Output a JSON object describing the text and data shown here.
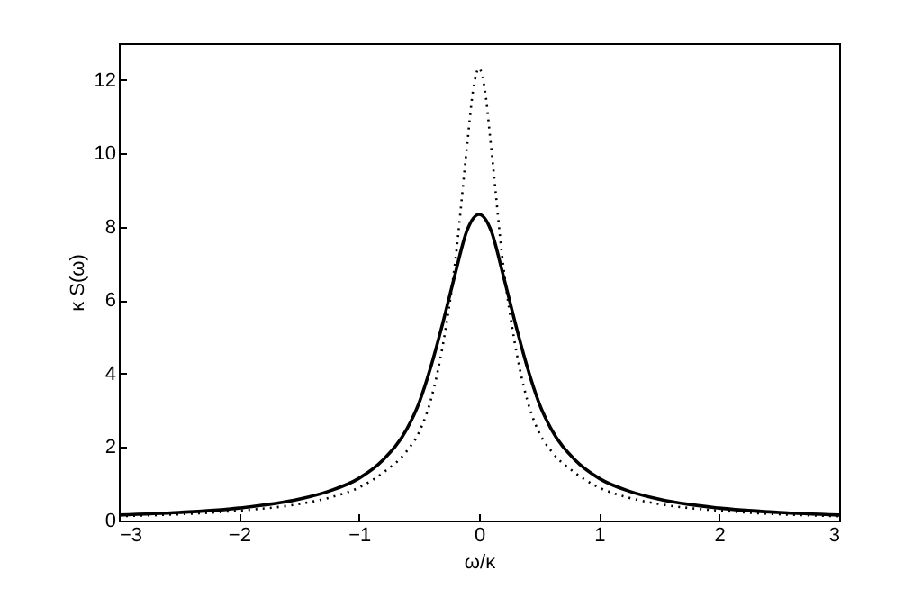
{
  "chart_data": {
    "type": "line",
    "xlabel": "ω/κ",
    "ylabel": "κ S(ω)",
    "xlim": [
      -3,
      3
    ],
    "ylim": [
      0,
      13
    ],
    "xticks": [
      -3,
      -2,
      -1,
      0,
      1,
      2,
      3
    ],
    "yticks": [
      0,
      2,
      4,
      6,
      8,
      10,
      12
    ],
    "grid": false,
    "series": [
      {
        "color": "#000000",
        "line_style": "solid",
        "x": [
          -3,
          -2.5,
          -2,
          -1.5,
          -1.25,
          -1,
          -0.8,
          -0.6,
          -0.5,
          -0.4,
          -0.3,
          -0.2,
          -0.1,
          0,
          0.1,
          0.2,
          0.3,
          0.4,
          0.5,
          0.6,
          0.8,
          1,
          1.25,
          1.5,
          2,
          2.5,
          3
        ],
        "values": [
          0.15,
          0.22,
          0.34,
          0.58,
          0.8,
          1.15,
          1.65,
          2.5,
          3.2,
          4.2,
          5.4,
          6.7,
          7.9,
          8.34,
          7.9,
          6.7,
          5.4,
          4.2,
          3.2,
          2.5,
          1.65,
          1.15,
          0.8,
          0.58,
          0.34,
          0.22,
          0.15
        ]
      },
      {
        "color": "#000000",
        "line_style": "dotted",
        "x": [
          -3,
          -2.5,
          -2,
          -1.5,
          -1.25,
          -1,
          -0.8,
          -0.6,
          -0.5,
          -0.4,
          -0.3,
          -0.2,
          -0.1,
          -0.05,
          0,
          0.05,
          0.1,
          0.2,
          0.3,
          0.4,
          0.5,
          0.6,
          0.8,
          1,
          1.25,
          1.5,
          2,
          2.5,
          3
        ],
        "values": [
          0.12,
          0.17,
          0.27,
          0.45,
          0.62,
          0.9,
          1.3,
          1.9,
          2.4,
          3.3,
          4.8,
          7.0,
          10.2,
          11.7,
          12.32,
          11.7,
          10.2,
          7.0,
          4.8,
          3.3,
          2.4,
          1.9,
          1.3,
          0.9,
          0.62,
          0.45,
          0.27,
          0.17,
          0.12
        ]
      }
    ]
  }
}
